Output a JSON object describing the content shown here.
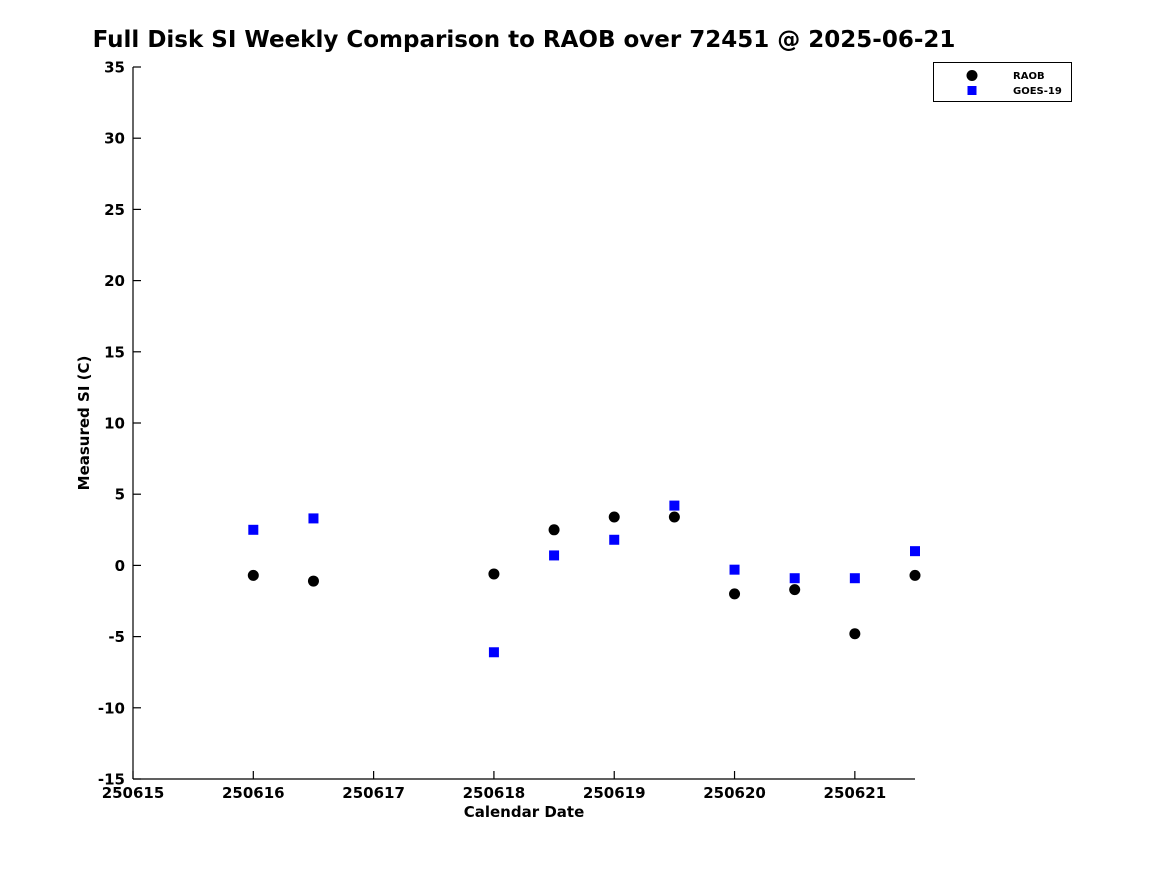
{
  "page": {
    "background": "#ffffff"
  },
  "chart_data": {
    "type": "scatter",
    "title": "Full Disk SI Weekly Comparison to RAOB over 72451 @ 2025-06-21",
    "xlabel": "Calendar Date",
    "ylabel": "Measured SI (C)",
    "xlim": [
      250615,
      250621.5
    ],
    "ylim": [
      -15,
      35
    ],
    "x_ticks": [
      250615,
      250616,
      250617,
      250618,
      250619,
      250620,
      250621
    ],
    "y_ticks": [
      35,
      30,
      25,
      20,
      15,
      10,
      5,
      0,
      -5,
      -10,
      -15
    ],
    "grid": false,
    "legend_position": "top-right-outside",
    "series": [
      {
        "name": "RAOB",
        "marker": "circle",
        "color": "#000000",
        "x": [
          250616,
          250616.5,
          250618,
          250618.5,
          250619,
          250619.5,
          250620,
          250620.5,
          250621,
          250621.5
        ],
        "y": [
          -0.7,
          -1.1,
          -0.6,
          2.5,
          3.4,
          3.4,
          -2.0,
          -1.7,
          -4.8,
          -0.7
        ]
      },
      {
        "name": "GOES-19",
        "marker": "square",
        "color": "#0000FF",
        "x": [
          250616,
          250616.5,
          250618,
          250618.5,
          250619,
          250619.5,
          250620,
          250620.5,
          250621,
          250621.5
        ],
        "y": [
          2.5,
          3.3,
          -6.1,
          0.7,
          1.8,
          4.2,
          -0.3,
          -0.9,
          -0.9,
          1.0
        ]
      }
    ]
  }
}
